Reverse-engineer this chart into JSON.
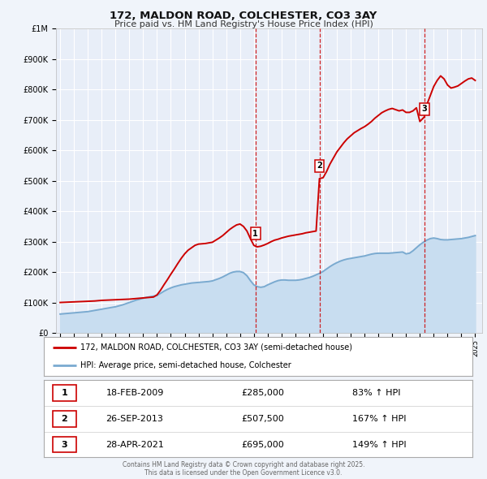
{
  "title": "172, MALDON ROAD, COLCHESTER, CO3 3AY",
  "subtitle": "Price paid vs. HM Land Registry's House Price Index (HPI)",
  "background_color": "#f0f4fa",
  "plot_bg_color": "#e8eef8",
  "grid_color": "#ffffff",
  "ylim": [
    0,
    1000000
  ],
  "yticks": [
    0,
    100000,
    200000,
    300000,
    400000,
    500000,
    600000,
    700000,
    800000,
    900000,
    1000000
  ],
  "ytick_labels": [
    "£0",
    "£100K",
    "£200K",
    "£300K",
    "£400K",
    "£500K",
    "£600K",
    "£700K",
    "£800K",
    "£900K",
    "£1M"
  ],
  "xlim_start": 1994.7,
  "xlim_end": 2025.5,
  "xtick_years": [
    1995,
    1996,
    1997,
    1998,
    1999,
    2000,
    2001,
    2002,
    2003,
    2004,
    2005,
    2006,
    2007,
    2008,
    2009,
    2010,
    2011,
    2012,
    2013,
    2014,
    2015,
    2016,
    2017,
    2018,
    2019,
    2020,
    2021,
    2022,
    2023,
    2024,
    2025
  ],
  "sale_color": "#cc0000",
  "hpi_color": "#7aaad0",
  "hpi_fill_color": "#c8ddf0",
  "sale_points": [
    {
      "date": 2009.12,
      "price": 285000,
      "label": "1"
    },
    {
      "date": 2013.74,
      "price": 507500,
      "label": "2"
    },
    {
      "date": 2021.32,
      "price": 695000,
      "label": "3"
    }
  ],
  "vline_color": "#cc0000",
  "sale_line_x": [
    1995.0,
    1995.25,
    1995.5,
    1995.75,
    1996.0,
    1996.25,
    1996.5,
    1996.75,
    1997.0,
    1997.25,
    1997.5,
    1997.75,
    1998.0,
    1998.25,
    1998.5,
    1998.75,
    1999.0,
    1999.25,
    1999.5,
    1999.75,
    2000.0,
    2000.25,
    2000.5,
    2000.75,
    2001.0,
    2001.25,
    2001.5,
    2001.75,
    2002.0,
    2002.25,
    2002.5,
    2002.75,
    2003.0,
    2003.25,
    2003.5,
    2003.75,
    2004.0,
    2004.25,
    2004.5,
    2004.75,
    2005.0,
    2005.25,
    2005.5,
    2005.75,
    2006.0,
    2006.25,
    2006.5,
    2006.75,
    2007.0,
    2007.25,
    2007.5,
    2007.75,
    2008.0,
    2008.25,
    2008.5,
    2008.75,
    2009.0,
    2009.12,
    2009.25,
    2009.5,
    2009.75,
    2010.0,
    2010.25,
    2010.5,
    2010.75,
    2011.0,
    2011.25,
    2011.5,
    2011.75,
    2012.0,
    2012.25,
    2012.5,
    2012.75,
    2013.0,
    2013.25,
    2013.5,
    2013.74,
    2014.0,
    2014.25,
    2014.5,
    2014.75,
    2015.0,
    2015.25,
    2015.5,
    2015.75,
    2016.0,
    2016.25,
    2016.5,
    2016.75,
    2017.0,
    2017.25,
    2017.5,
    2017.75,
    2018.0,
    2018.25,
    2018.5,
    2018.75,
    2019.0,
    2019.25,
    2019.5,
    2019.75,
    2020.0,
    2020.25,
    2020.5,
    2020.75,
    2021.0,
    2021.32,
    2021.5,
    2021.75,
    2022.0,
    2022.25,
    2022.5,
    2022.75,
    2023.0,
    2023.25,
    2023.5,
    2023.75,
    2024.0,
    2024.25,
    2024.5,
    2024.75,
    2025.0
  ],
  "sale_line_y": [
    100000,
    100500,
    101000,
    101500,
    102000,
    102500,
    103000,
    103500,
    104000,
    104500,
    105000,
    106000,
    107000,
    107500,
    108000,
    108500,
    109000,
    109500,
    110000,
    110500,
    111000,
    112000,
    113000,
    114000,
    115000,
    116000,
    117000,
    118000,
    125000,
    140000,
    158000,
    175000,
    193000,
    210000,
    228000,
    245000,
    260000,
    272000,
    280000,
    288000,
    292000,
    293000,
    294000,
    296000,
    298000,
    305000,
    312000,
    320000,
    330000,
    340000,
    348000,
    355000,
    358000,
    350000,
    335000,
    310000,
    288000,
    285000,
    283000,
    285000,
    289000,
    294000,
    300000,
    305000,
    308000,
    312000,
    315000,
    318000,
    320000,
    322000,
    324000,
    326000,
    329000,
    331000,
    333000,
    335000,
    507500,
    510000,
    530000,
    555000,
    575000,
    595000,
    610000,
    625000,
    638000,
    648000,
    658000,
    665000,
    672000,
    678000,
    686000,
    695000,
    706000,
    715000,
    724000,
    730000,
    735000,
    738000,
    734000,
    730000,
    733000,
    725000,
    725000,
    730000,
    740000,
    695000,
    710000,
    750000,
    780000,
    810000,
    830000,
    845000,
    835000,
    815000,
    805000,
    808000,
    812000,
    820000,
    828000,
    835000,
    838000,
    830000
  ],
  "hpi_line_x": [
    1995.0,
    1995.25,
    1995.5,
    1995.75,
    1996.0,
    1996.25,
    1996.5,
    1996.75,
    1997.0,
    1997.25,
    1997.5,
    1997.75,
    1998.0,
    1998.25,
    1998.5,
    1998.75,
    1999.0,
    1999.25,
    1999.5,
    1999.75,
    2000.0,
    2000.25,
    2000.5,
    2000.75,
    2001.0,
    2001.25,
    2001.5,
    2001.75,
    2002.0,
    2002.25,
    2002.5,
    2002.75,
    2003.0,
    2003.25,
    2003.5,
    2003.75,
    2004.0,
    2004.25,
    2004.5,
    2004.75,
    2005.0,
    2005.25,
    2005.5,
    2005.75,
    2006.0,
    2006.25,
    2006.5,
    2006.75,
    2007.0,
    2007.25,
    2007.5,
    2007.75,
    2008.0,
    2008.25,
    2008.5,
    2008.75,
    2009.0,
    2009.25,
    2009.5,
    2009.75,
    2010.0,
    2010.25,
    2010.5,
    2010.75,
    2011.0,
    2011.25,
    2011.5,
    2011.75,
    2012.0,
    2012.25,
    2012.5,
    2012.75,
    2013.0,
    2013.25,
    2013.5,
    2013.75,
    2014.0,
    2014.25,
    2014.5,
    2014.75,
    2015.0,
    2015.25,
    2015.5,
    2015.75,
    2016.0,
    2016.25,
    2016.5,
    2016.75,
    2017.0,
    2017.25,
    2017.5,
    2017.75,
    2018.0,
    2018.25,
    2018.5,
    2018.75,
    2019.0,
    2019.25,
    2019.5,
    2019.75,
    2020.0,
    2020.25,
    2020.5,
    2020.75,
    2021.0,
    2021.25,
    2021.5,
    2021.75,
    2022.0,
    2022.25,
    2022.5,
    2022.75,
    2023.0,
    2023.25,
    2023.5,
    2023.75,
    2024.0,
    2024.25,
    2024.5,
    2024.75,
    2025.0
  ],
  "hpi_line_y": [
    62000,
    63000,
    64000,
    65000,
    66000,
    67000,
    68000,
    69000,
    70000,
    72000,
    74000,
    76000,
    78000,
    80000,
    82000,
    84000,
    86000,
    89000,
    92000,
    96000,
    100000,
    104000,
    108000,
    111000,
    114000,
    117000,
    119000,
    121000,
    123000,
    130000,
    137000,
    143000,
    148000,
    152000,
    155000,
    158000,
    160000,
    162000,
    164000,
    165000,
    166000,
    167000,
    168000,
    169000,
    171000,
    175000,
    179000,
    184000,
    190000,
    196000,
    200000,
    202000,
    202000,
    198000,
    188000,
    172000,
    158000,
    152000,
    150000,
    152000,
    158000,
    163000,
    168000,
    172000,
    174000,
    174000,
    173000,
    173000,
    173000,
    174000,
    176000,
    179000,
    182000,
    186000,
    191000,
    196000,
    202000,
    210000,
    218000,
    225000,
    231000,
    236000,
    240000,
    243000,
    245000,
    247000,
    249000,
    251000,
    253000,
    256000,
    259000,
    261000,
    262000,
    262000,
    262000,
    262000,
    263000,
    264000,
    265000,
    266000,
    260000,
    262000,
    270000,
    280000,
    290000,
    298000,
    305000,
    310000,
    312000,
    310000,
    307000,
    306000,
    306000,
    307000,
    308000,
    309000,
    310000,
    312000,
    314000,
    317000,
    320000
  ],
  "legend_sale_label": "172, MALDON ROAD, COLCHESTER, CO3 3AY (semi-detached house)",
  "legend_hpi_label": "HPI: Average price, semi-detached house, Colchester",
  "table_rows": [
    {
      "num": "1",
      "date": "18-FEB-2009",
      "price": "£285,000",
      "hpi": "83% ↑ HPI"
    },
    {
      "num": "2",
      "date": "26-SEP-2013",
      "price": "£507,500",
      "hpi": "167% ↑ HPI"
    },
    {
      "num": "3",
      "date": "28-APR-2021",
      "price": "£695,000",
      "hpi": "149% ↑ HPI"
    }
  ],
  "footer": "Contains HM Land Registry data © Crown copyright and database right 2025.\nThis data is licensed under the Open Government Licence v3.0."
}
